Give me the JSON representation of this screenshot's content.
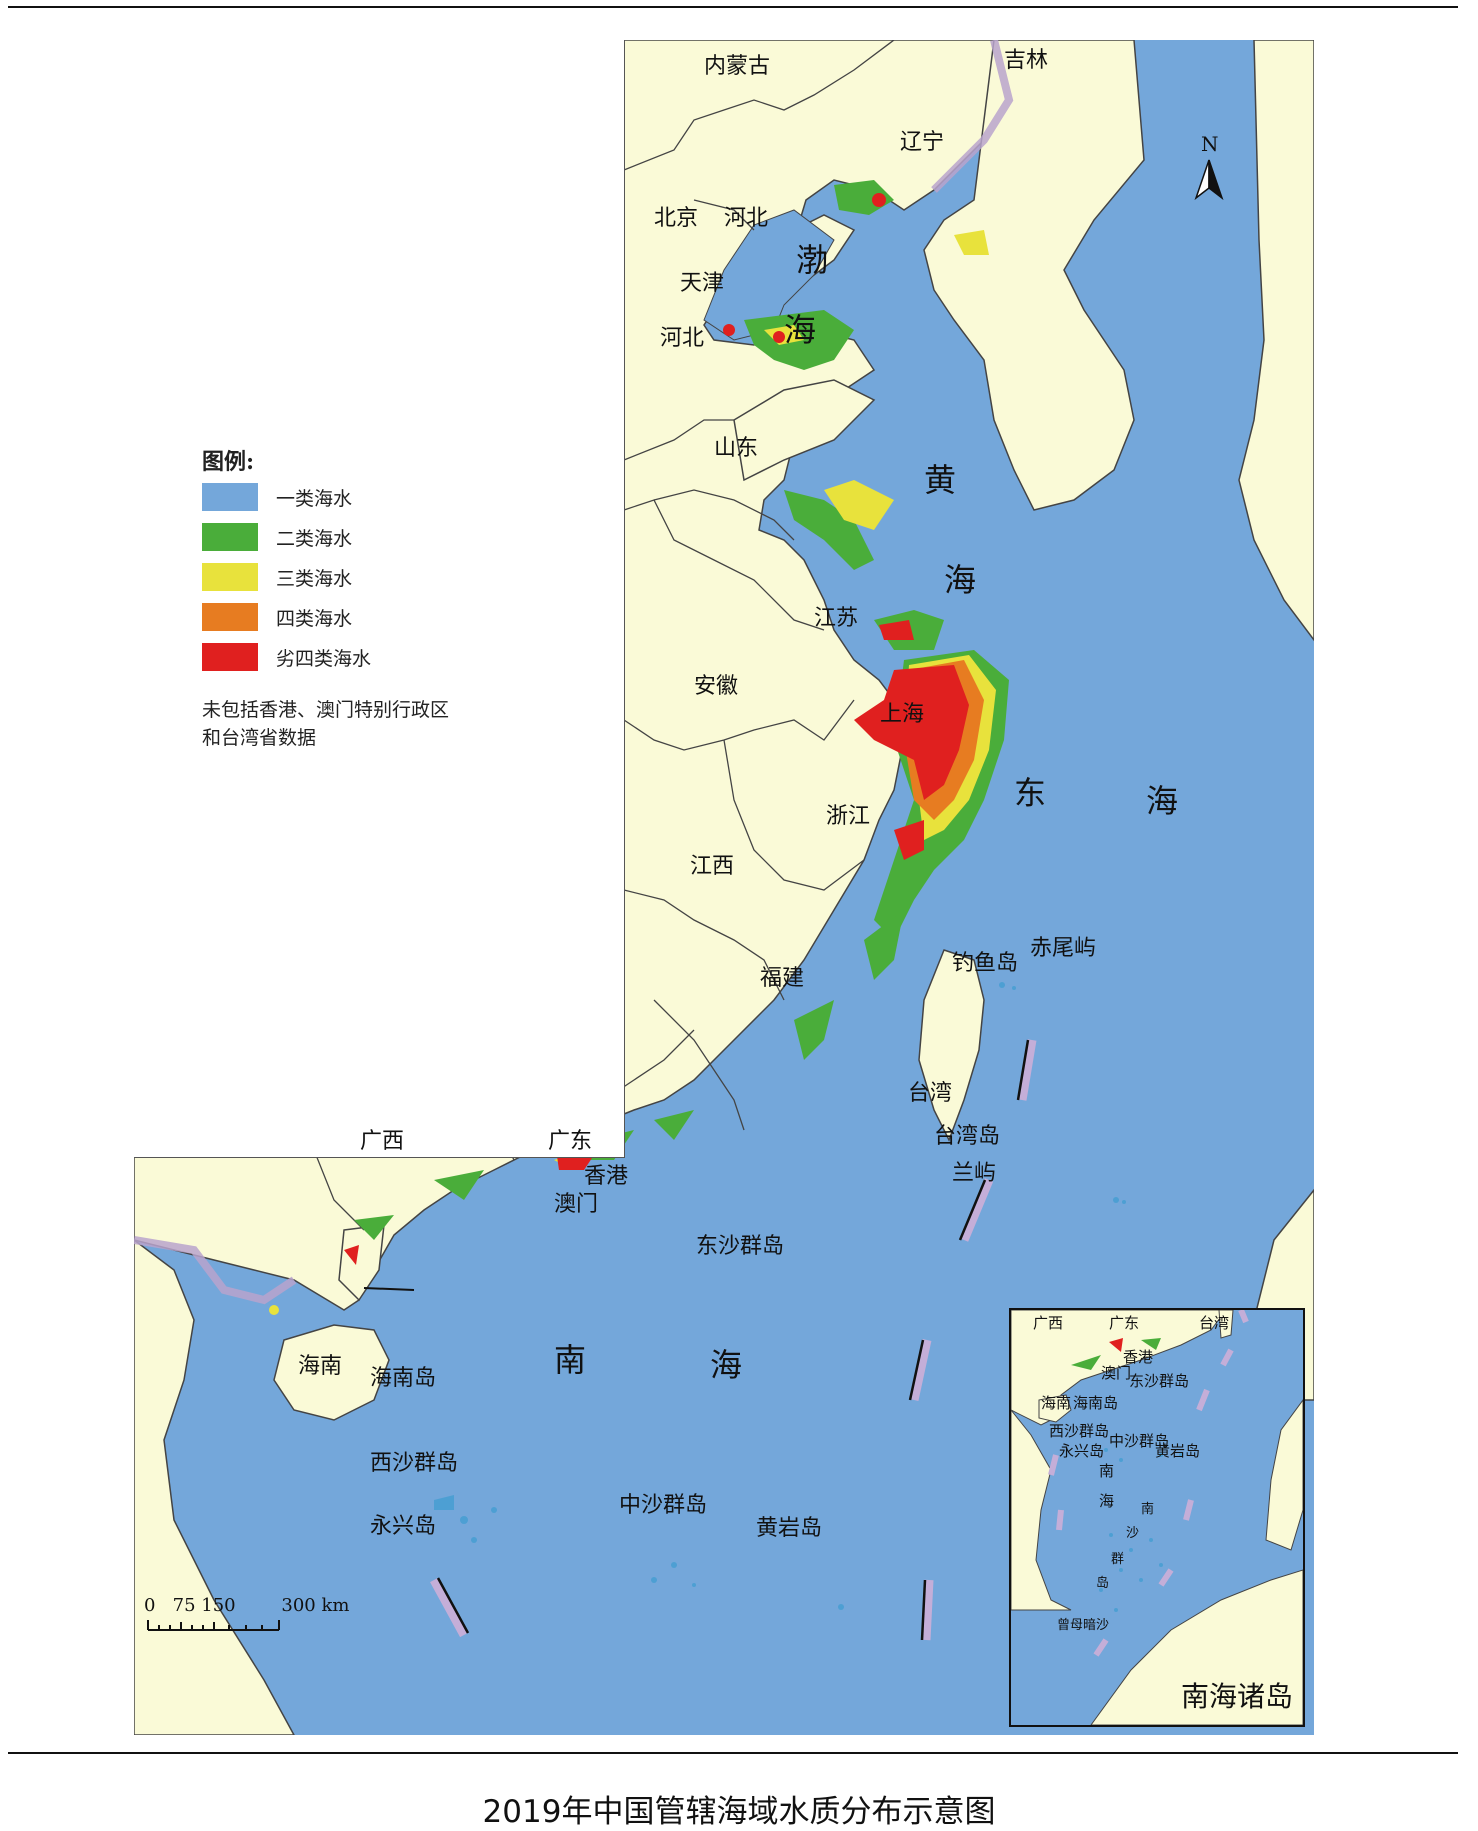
{
  "legend": {
    "title": "图例:",
    "items": [
      {
        "label": "一类海水",
        "color": "#74a7da"
      },
      {
        "label": "二类海水",
        "color": "#4aad3a"
      },
      {
        "label": "三类海水",
        "color": "#e8e23c"
      },
      {
        "label": "四类海水",
        "color": "#e77c21"
      },
      {
        "label": "劣四类海水",
        "color": "#e0201f"
      }
    ],
    "note_line1": "未包括香港、澳门特别行政区",
    "note_line2": "和台湾省数据"
  },
  "provinces": {
    "inner_mongolia": "内蒙古",
    "jilin": "吉林",
    "liaoning": "辽宁",
    "beijing": "北京",
    "hebei_top": "河北",
    "tianjin": "天津",
    "hebei_bottom": "河北",
    "shandong": "山东",
    "jiangsu": "江苏",
    "anhui": "安徽",
    "shanghai": "上海",
    "zhejiang": "浙江",
    "jiangxi": "江西",
    "fujian": "福建",
    "guangxi": "广西",
    "guangdong": "广东",
    "hongkong": "香港",
    "macau": "澳门",
    "hainan": "海南",
    "taiwan": "台湾"
  },
  "seas": {
    "bohai_1": "渤",
    "bohai_2": "海",
    "yellow_1": "黄",
    "yellow_2": "海",
    "east_1": "东",
    "east_2": "海",
    "south_1": "南",
    "south_2": "海"
  },
  "islands": {
    "diaoyu": "钓鱼岛",
    "chiwei": "赤尾屿",
    "taiwan_island": "台湾岛",
    "lanyu": "兰屿",
    "dongsha": "东沙群岛",
    "hainan_island": "海南岛",
    "xisha": "西沙群岛",
    "yongxing": "永兴岛",
    "zhongsha": "中沙群岛",
    "huangyan": "黄岩岛"
  },
  "compass": {
    "north": "N"
  },
  "scale": {
    "ticks": "0   75 150        300 km"
  },
  "inset": {
    "title": "南海诸岛",
    "guangxi": "广西",
    "guangdong": "广东",
    "taiwan": "台湾",
    "hongkong": "香港",
    "macau": "澳门",
    "dongsha": "东沙群岛",
    "hainan": "海南",
    "hainan_island": "海南岛",
    "xisha": "西沙群岛",
    "zhongsha": "中沙群岛",
    "yongxing": "永兴岛",
    "huangyan": "黄岩岛",
    "south_sea_1": "南",
    "south_sea_2": "海",
    "nansha_1": "南",
    "nansha_2": "沙",
    "nansha_3": "群",
    "nansha_4": "岛",
    "zengmu": "曾母暗沙"
  },
  "caption": "2019年中国管辖海域水质分布示意图"
}
